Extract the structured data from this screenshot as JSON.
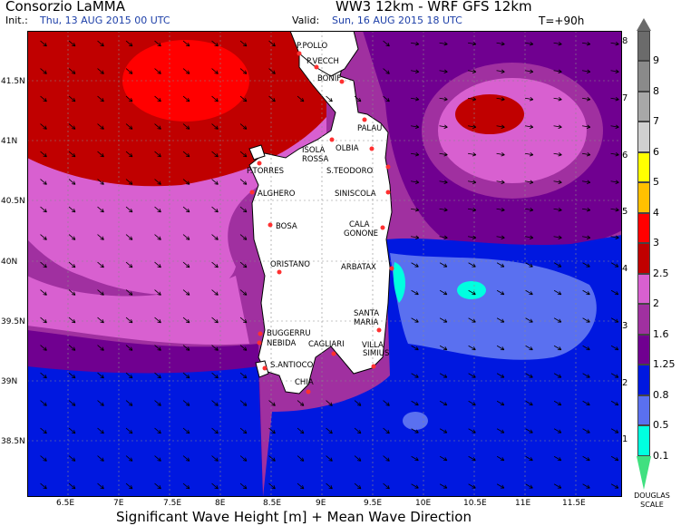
{
  "header": {
    "org": "Consorzio LaMMA",
    "model": "WW3 12km - WRF GFS 12km",
    "init_label": "Init.:",
    "init_value": "Thu, 13 AUG 2015  00 UTC",
    "valid_label": "Valid:",
    "valid_value": "Sun, 16 AUG 2015  18 UTC",
    "forecast_step": "T=+90h"
  },
  "map": {
    "lat_ticks": [
      "41.5N",
      "41N",
      "40.5N",
      "40N",
      "39.5N",
      "39N",
      "38.5N"
    ],
    "lon_ticks": [
      "6.5E",
      "7E",
      "7.5E",
      "8E",
      "8.5E",
      "9E",
      "9.5E",
      "10E",
      "10.5E",
      "11E",
      "11.5E"
    ],
    "places": [
      {
        "name": "P.POLLO"
      },
      {
        "name": "P.VECCH"
      },
      {
        "name": "BONIF"
      },
      {
        "name": "PALAU"
      },
      {
        "name": "ISOLA"
      },
      {
        "name": "ROSSA"
      },
      {
        "name": "OLBIA"
      },
      {
        "name": "P.TORRES"
      },
      {
        "name": "S.TEODORO"
      },
      {
        "name": "ALGHERO"
      },
      {
        "name": "SINISCOLA"
      },
      {
        "name": "BOSA"
      },
      {
        "name": "CALA"
      },
      {
        "name": "GONONE"
      },
      {
        "name": "ORISTANO"
      },
      {
        "name": "ARBATAX"
      },
      {
        "name": "SANTA"
      },
      {
        "name": "MARIA"
      },
      {
        "name": "BUGGERRU"
      },
      {
        "name": "NEBIDA"
      },
      {
        "name": "CAGLIARI"
      },
      {
        "name": "VILLA"
      },
      {
        "name": "SIMIUS"
      },
      {
        "name": "S.ANTIOCO"
      },
      {
        "name": "CHIA"
      }
    ]
  },
  "footer": "Significant Wave Height [m] + Mean Wave Direction",
  "legend": {
    "title_line1": "DOUGLAS",
    "title_line2": "SCALE",
    "bands": [
      {
        "label": "9",
        "color": "#6b6b6b"
      },
      {
        "label": "8",
        "color": "#8a8a8a"
      },
      {
        "label": "7",
        "color": "#a8a8a8"
      },
      {
        "label": "6",
        "color": "#d0d0d0"
      },
      {
        "label": "5",
        "color": "#ffff00"
      },
      {
        "label": "4",
        "color": "#ffc000"
      },
      {
        "label": "3",
        "color": "#ff0000"
      },
      {
        "label": "2.5",
        "color": "#c00000"
      },
      {
        "label": "2",
        "color": "#d860d0"
      },
      {
        "label": "1.6",
        "color": "#a030a0"
      },
      {
        "label": "1.25",
        "color": "#700090"
      },
      {
        "label": "0.8",
        "color": "#0018e0"
      },
      {
        "label": "0.5",
        "color": "#5a70f0"
      },
      {
        "label": "0.1",
        "color": "#00ffe0"
      },
      {
        "label": "",
        "color": "#40e080"
      }
    ],
    "douglas_levels": [
      "8",
      "7",
      "6",
      "5",
      "4",
      "3",
      "2",
      "1"
    ]
  },
  "colors": {
    "land": "#ffffff",
    "deep_red": "#c00000",
    "red": "#ff0000",
    "magenta": "#d860d0",
    "purple": "#a030a0",
    "dark_purple": "#700090",
    "blue": "#0018e0",
    "light_blue": "#5a70f0",
    "cyan": "#00ffe0"
  }
}
